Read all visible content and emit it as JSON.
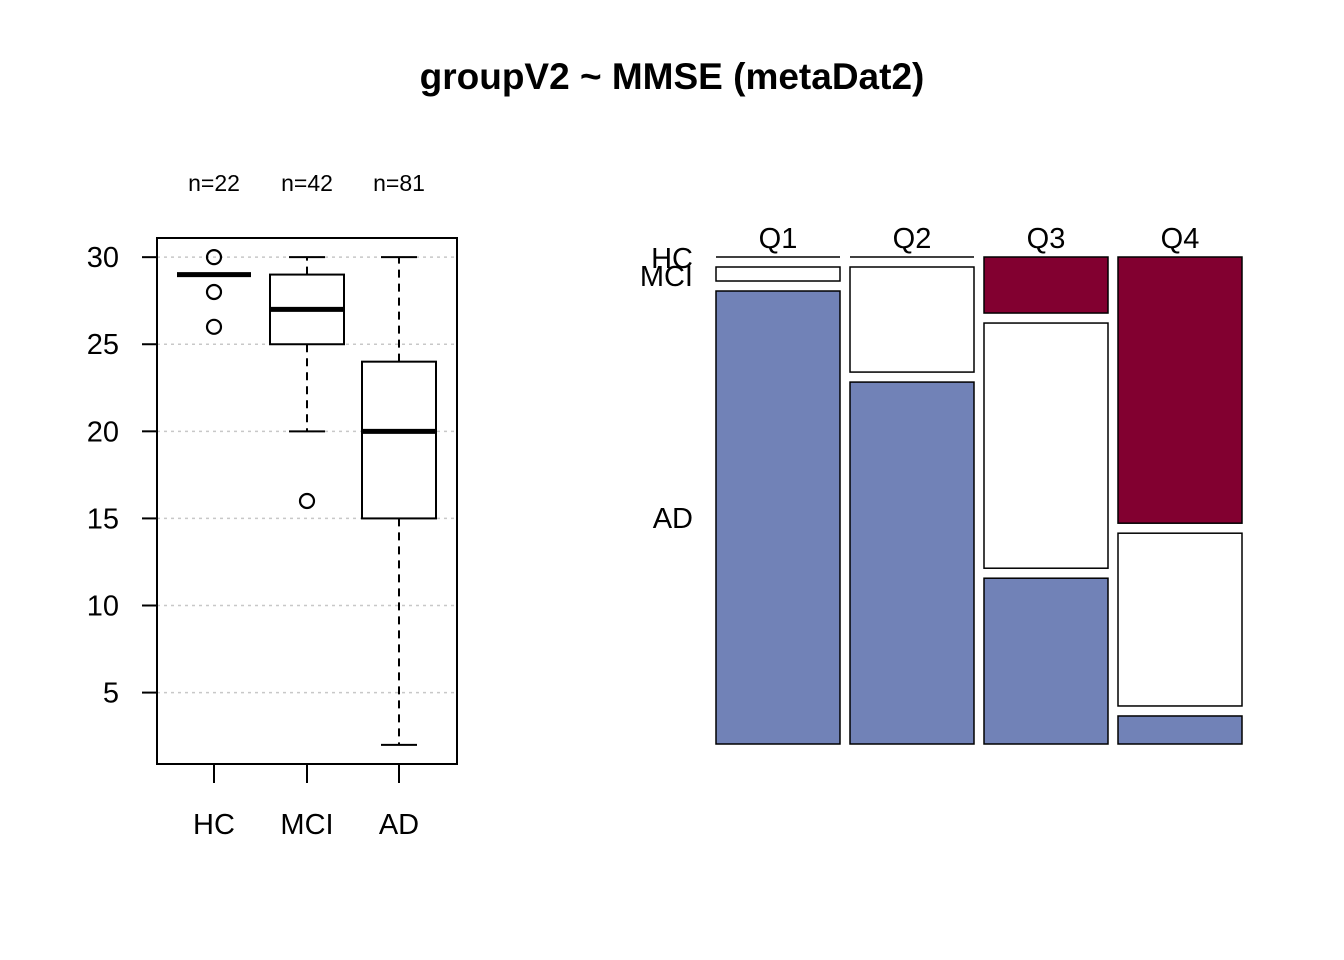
{
  "title": "groupV2 ~ MMSE (metaDat2)",
  "chart_data": [
    {
      "type": "boxplot",
      "categories": [
        "HC",
        "MCI",
        "AD"
      ],
      "counts": [
        "n=22",
        "n=42",
        "n=81"
      ],
      "yticks": [
        5,
        10,
        15,
        20,
        25,
        30
      ],
      "ylim": [
        0.9,
        31.1
      ],
      "grid": "horizontal dotted",
      "boxes": [
        {
          "name": "HC",
          "whisker_low": 29,
          "q1": 29,
          "median": 29,
          "q3": 29,
          "whisker_high": 29,
          "outliers": [
            30,
            28,
            26
          ]
        },
        {
          "name": "MCI",
          "whisker_low": 20,
          "q1": 25,
          "median": 27,
          "q3": 29,
          "whisker_high": 30,
          "outliers": [
            16
          ]
        },
        {
          "name": "AD",
          "whisker_low": 2,
          "q1": 15,
          "median": 20,
          "q3": 24,
          "whisker_high": 30,
          "outliers": []
        }
      ]
    },
    {
      "type": "mosaic",
      "columns": [
        "Q1",
        "Q2",
        "Q3",
        "Q4"
      ],
      "rows": [
        "HC",
        "MCI",
        "AD"
      ],
      "row_colors": {
        "HC": "#820030",
        "MCI": "#ffffff",
        "AD": "#7182b7"
      },
      "proportions": [
        {
          "column": "Q1",
          "HC": 0.0,
          "MCI": 0.03,
          "AD": 0.97
        },
        {
          "column": "Q2",
          "HC": 0.0,
          "MCI": 0.225,
          "AD": 0.775
        },
        {
          "column": "Q3",
          "HC": 0.12,
          "MCI": 0.525,
          "AD": 0.355
        },
        {
          "column": "Q4",
          "HC": 0.57,
          "MCI": 0.37,
          "AD": 0.06
        }
      ]
    }
  ]
}
